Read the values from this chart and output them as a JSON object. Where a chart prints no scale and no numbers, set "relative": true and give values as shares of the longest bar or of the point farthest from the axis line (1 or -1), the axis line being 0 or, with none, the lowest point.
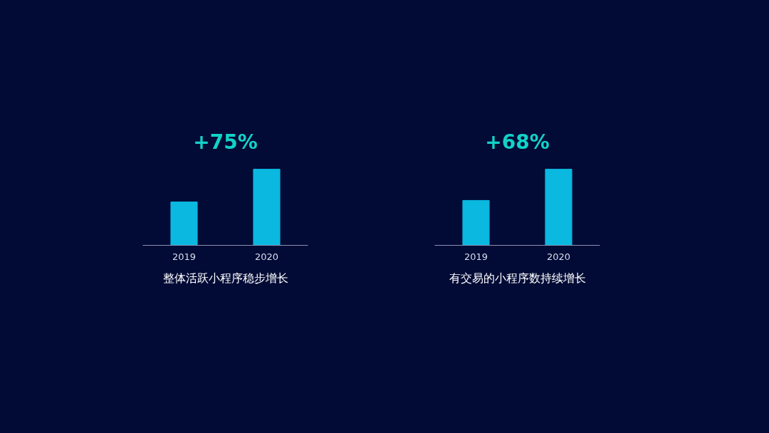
{
  "chart_data": [
    {
      "type": "bar",
      "title": "+75%",
      "xlabel": "整体活跃小程序稳步增长",
      "categories": [
        "2019",
        "2020"
      ],
      "values": [
        0.57,
        1
      ],
      "relative": true,
      "color": "#0ab8e0",
      "grid": false
    },
    {
      "type": "bar",
      "title": "+68%",
      "xlabel": "有交易的小程序数持续增长",
      "categories": [
        "2019",
        "2020"
      ],
      "values": [
        0.59,
        1
      ],
      "relative": true,
      "color": "#0ab8e0",
      "grid": false
    }
  ]
}
